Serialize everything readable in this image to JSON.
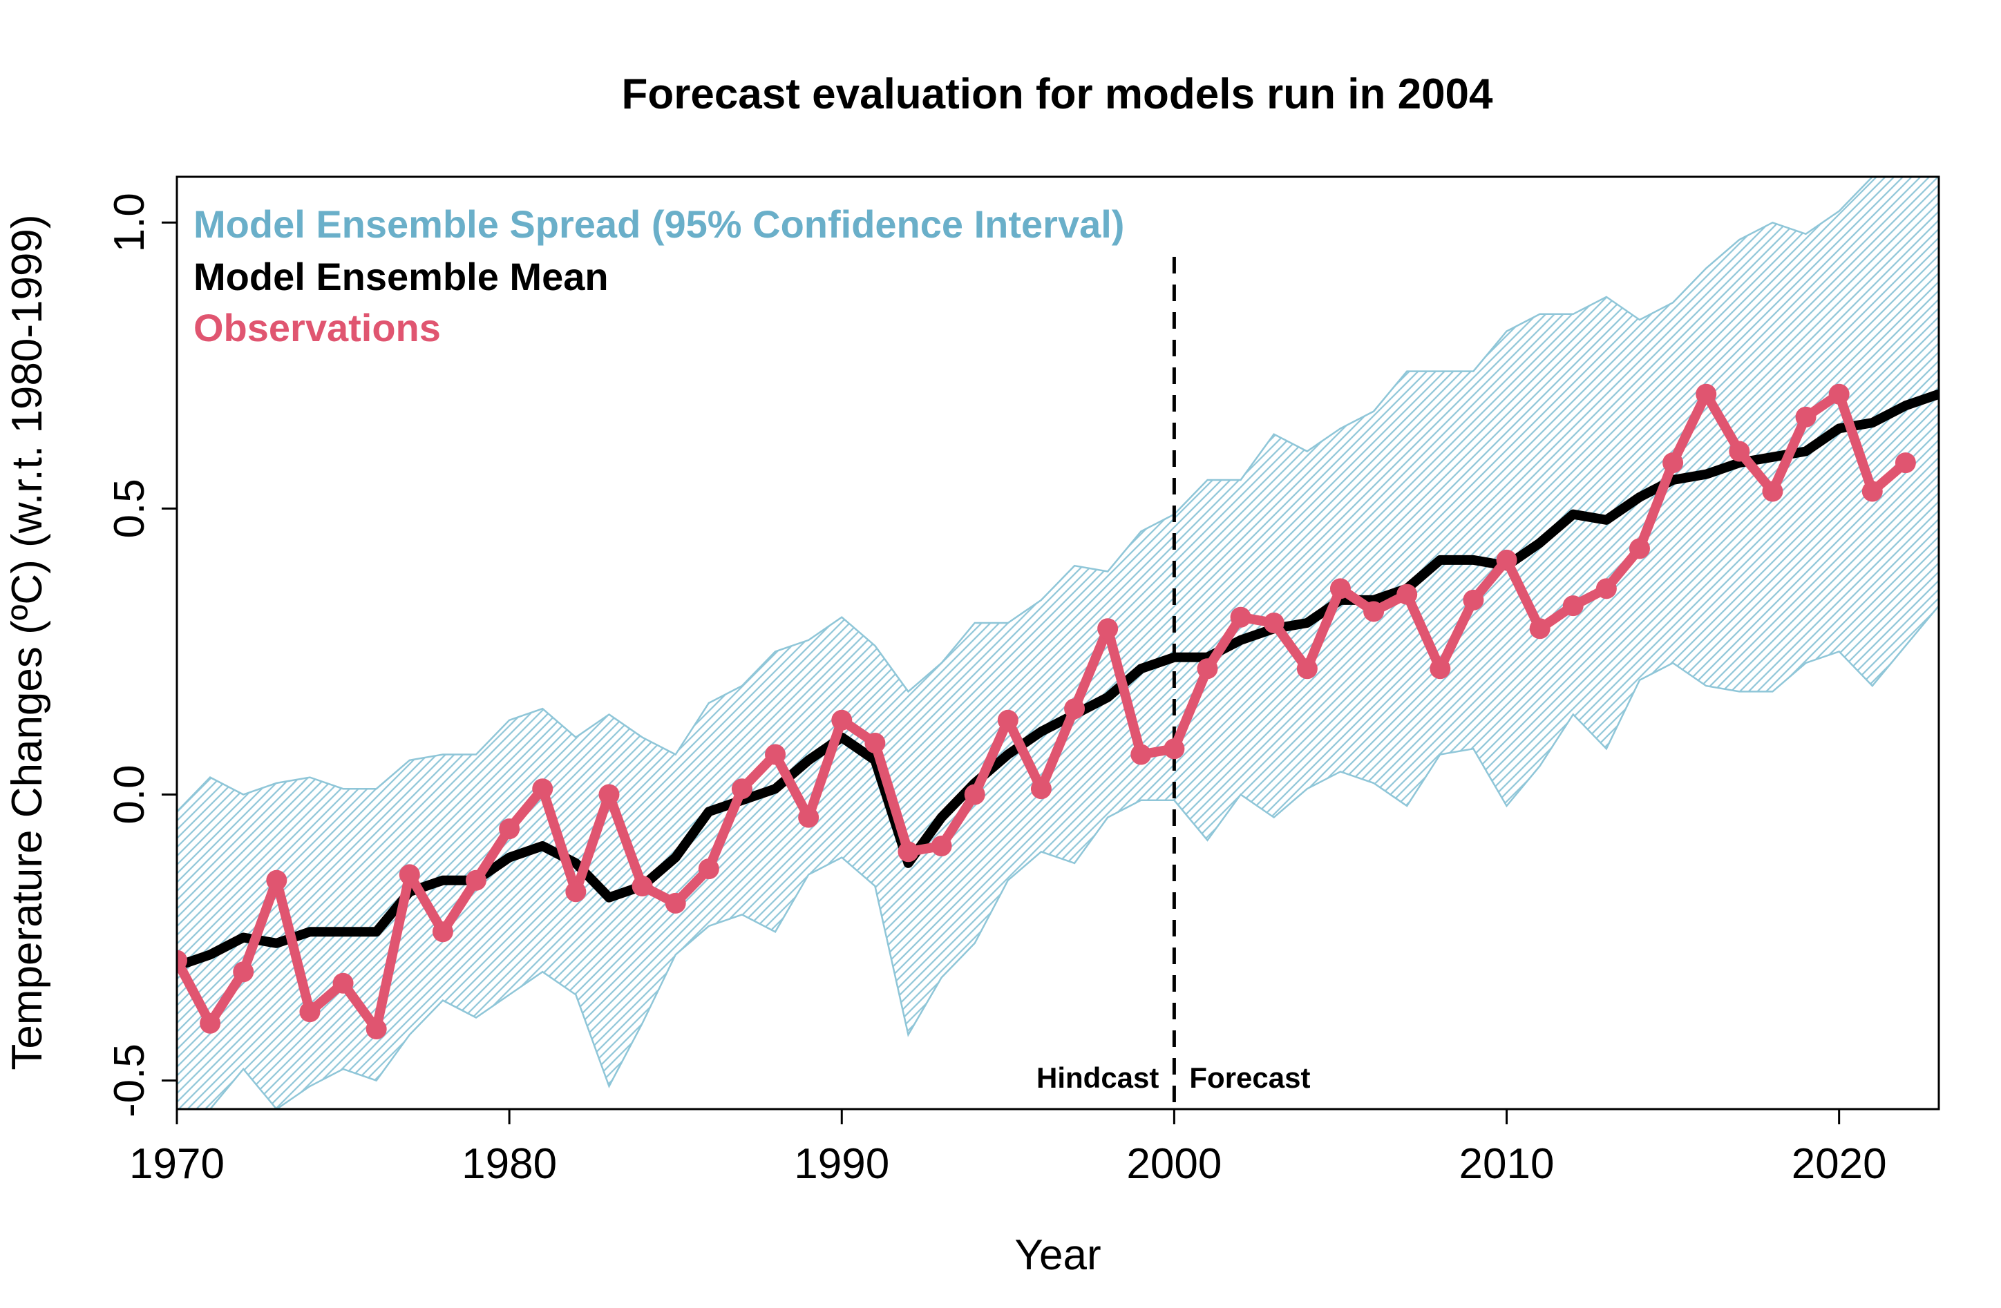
{
  "chart_data": {
    "type": "line",
    "title": "Forecast evaluation for models run in 2004",
    "xlabel": "Year",
    "ylabel": "Temperature Changes (ºC) (w.r.t. 1980-1999)",
    "xlim": [
      1970,
      2023
    ],
    "ylim": [
      -0.55,
      1.08
    ],
    "x_ticks": [
      1970,
      1980,
      1990,
      2000,
      2010,
      2020
    ],
    "y_ticks": [
      -0.5,
      0.0,
      0.5,
      1.0
    ],
    "x_tick_labels": [
      "1970",
      "1980",
      "1990",
      "2000",
      "2010",
      "2020"
    ],
    "y_tick_labels": [
      "-0.5",
      "0.0",
      "0.5",
      "1.0"
    ],
    "grid": false,
    "legend_position": "top-left",
    "vertical_marker": {
      "x": 2000,
      "left_label": "Hindcast",
      "right_label": "Forecast",
      "style": "dashed"
    },
    "colors": {
      "spread": "#6aafc9",
      "spread_fill": "#d6ecf2",
      "mean": "#000000",
      "observations": "#e05570"
    },
    "legend": [
      {
        "label": "Model Ensemble Spread (95% Confidence Interval)",
        "color": "#6aafc9"
      },
      {
        "label": "Model Ensemble Mean",
        "color": "#000000"
      },
      {
        "label": "Observations",
        "color": "#e05570"
      }
    ],
    "spread": {
      "name": "Model Ensemble Spread (95% Confidence Interval)",
      "x": [
        1970,
        1971,
        1972,
        1973,
        1974,
        1975,
        1976,
        1977,
        1978,
        1979,
        1980,
        1981,
        1982,
        1983,
        1984,
        1985,
        1986,
        1987,
        1988,
        1989,
        1990,
        1991,
        1992,
        1993,
        1994,
        1995,
        1996,
        1997,
        1998,
        1999,
        2000,
        2001,
        2002,
        2003,
        2004,
        2005,
        2006,
        2007,
        2008,
        2009,
        2010,
        2011,
        2012,
        2013,
        2014,
        2015,
        2016,
        2017,
        2018,
        2019,
        2020,
        2021,
        2022,
        2023
      ],
      "upper": [
        -0.03,
        0.03,
        0.0,
        0.02,
        0.03,
        0.01,
        0.01,
        0.06,
        0.07,
        0.07,
        0.13,
        0.15,
        0.1,
        0.14,
        0.1,
        0.07,
        0.16,
        0.19,
        0.25,
        0.27,
        0.31,
        0.26,
        0.18,
        0.23,
        0.3,
        0.3,
        0.34,
        0.4,
        0.39,
        0.46,
        0.49,
        0.55,
        0.55,
        0.63,
        0.6,
        0.64,
        0.67,
        0.74,
        0.74,
        0.74,
        0.81,
        0.84,
        0.84,
        0.87,
        0.83,
        0.86,
        0.92,
        0.97,
        1.0,
        0.98,
        1.02,
        1.08,
        1.08,
        1.08
      ],
      "lower": [
        -0.55,
        -0.55,
        -0.48,
        -0.55,
        -0.51,
        -0.48,
        -0.5,
        -0.42,
        -0.36,
        -0.39,
        -0.35,
        -0.31,
        -0.35,
        -0.51,
        -0.4,
        -0.28,
        -0.23,
        -0.21,
        -0.24,
        -0.14,
        -0.11,
        -0.16,
        -0.42,
        -0.32,
        -0.26,
        -0.15,
        -0.1,
        -0.12,
        -0.04,
        -0.01,
        -0.01,
        -0.08,
        0.0,
        -0.04,
        0.01,
        0.04,
        0.02,
        -0.02,
        0.07,
        0.08,
        -0.02,
        0.05,
        0.14,
        0.08,
        0.2,
        0.23,
        0.19,
        0.18,
        0.18,
        0.23,
        0.25,
        0.19,
        0.26,
        0.33
      ]
    },
    "series": [
      {
        "name": "Model Ensemble Mean",
        "x": [
          1970,
          1971,
          1972,
          1973,
          1974,
          1975,
          1976,
          1977,
          1978,
          1979,
          1980,
          1981,
          1982,
          1983,
          1984,
          1985,
          1986,
          1987,
          1988,
          1989,
          1990,
          1991,
          1992,
          1993,
          1994,
          1995,
          1996,
          1997,
          1998,
          1999,
          2000,
          2001,
          2002,
          2003,
          2004,
          2005,
          2006,
          2007,
          2008,
          2009,
          2010,
          2011,
          2012,
          2013,
          2014,
          2015,
          2016,
          2017,
          2018,
          2019,
          2020,
          2021,
          2022,
          2023
        ],
        "values": [
          -0.3,
          -0.28,
          -0.25,
          -0.26,
          -0.24,
          -0.24,
          -0.24,
          -0.17,
          -0.15,
          -0.15,
          -0.11,
          -0.09,
          -0.12,
          -0.18,
          -0.16,
          -0.11,
          -0.03,
          -0.01,
          0.01,
          0.06,
          0.1,
          0.06,
          -0.12,
          -0.04,
          0.02,
          0.07,
          0.11,
          0.14,
          0.17,
          0.22,
          0.24,
          0.24,
          0.27,
          0.29,
          0.3,
          0.34,
          0.34,
          0.36,
          0.41,
          0.41,
          0.4,
          0.44,
          0.49,
          0.48,
          0.52,
          0.55,
          0.56,
          0.58,
          0.59,
          0.6,
          0.64,
          0.65,
          0.68,
          0.7
        ],
        "markers": false
      },
      {
        "name": "Observations",
        "x": [
          1970,
          1971,
          1972,
          1973,
          1974,
          1975,
          1976,
          1977,
          1978,
          1979,
          1980,
          1981,
          1982,
          1983,
          1984,
          1985,
          1986,
          1987,
          1988,
          1989,
          1990,
          1991,
          1992,
          1993,
          1994,
          1995,
          1996,
          1997,
          1998,
          1999,
          2000,
          2001,
          2002,
          2003,
          2004,
          2005,
          2006,
          2007,
          2008,
          2009,
          2010,
          2011,
          2012,
          2013,
          2014,
          2015,
          2016,
          2017,
          2018,
          2019,
          2020,
          2021,
          2022
        ],
        "values": [
          -0.29,
          -0.4,
          -0.31,
          -0.15,
          -0.38,
          -0.33,
          -0.41,
          -0.14,
          -0.24,
          -0.15,
          -0.06,
          0.01,
          -0.17,
          0.0,
          -0.16,
          -0.19,
          -0.13,
          0.01,
          0.07,
          -0.04,
          0.13,
          0.09,
          -0.1,
          -0.09,
          0.0,
          0.13,
          0.01,
          0.15,
          0.29,
          0.07,
          0.08,
          0.22,
          0.31,
          0.3,
          0.22,
          0.36,
          0.32,
          0.35,
          0.22,
          0.34,
          0.41,
          0.29,
          0.33,
          0.36,
          0.43,
          0.58,
          0.7,
          0.6,
          0.53,
          0.66,
          0.7,
          0.53,
          0.58
        ],
        "markers": true
      }
    ]
  }
}
